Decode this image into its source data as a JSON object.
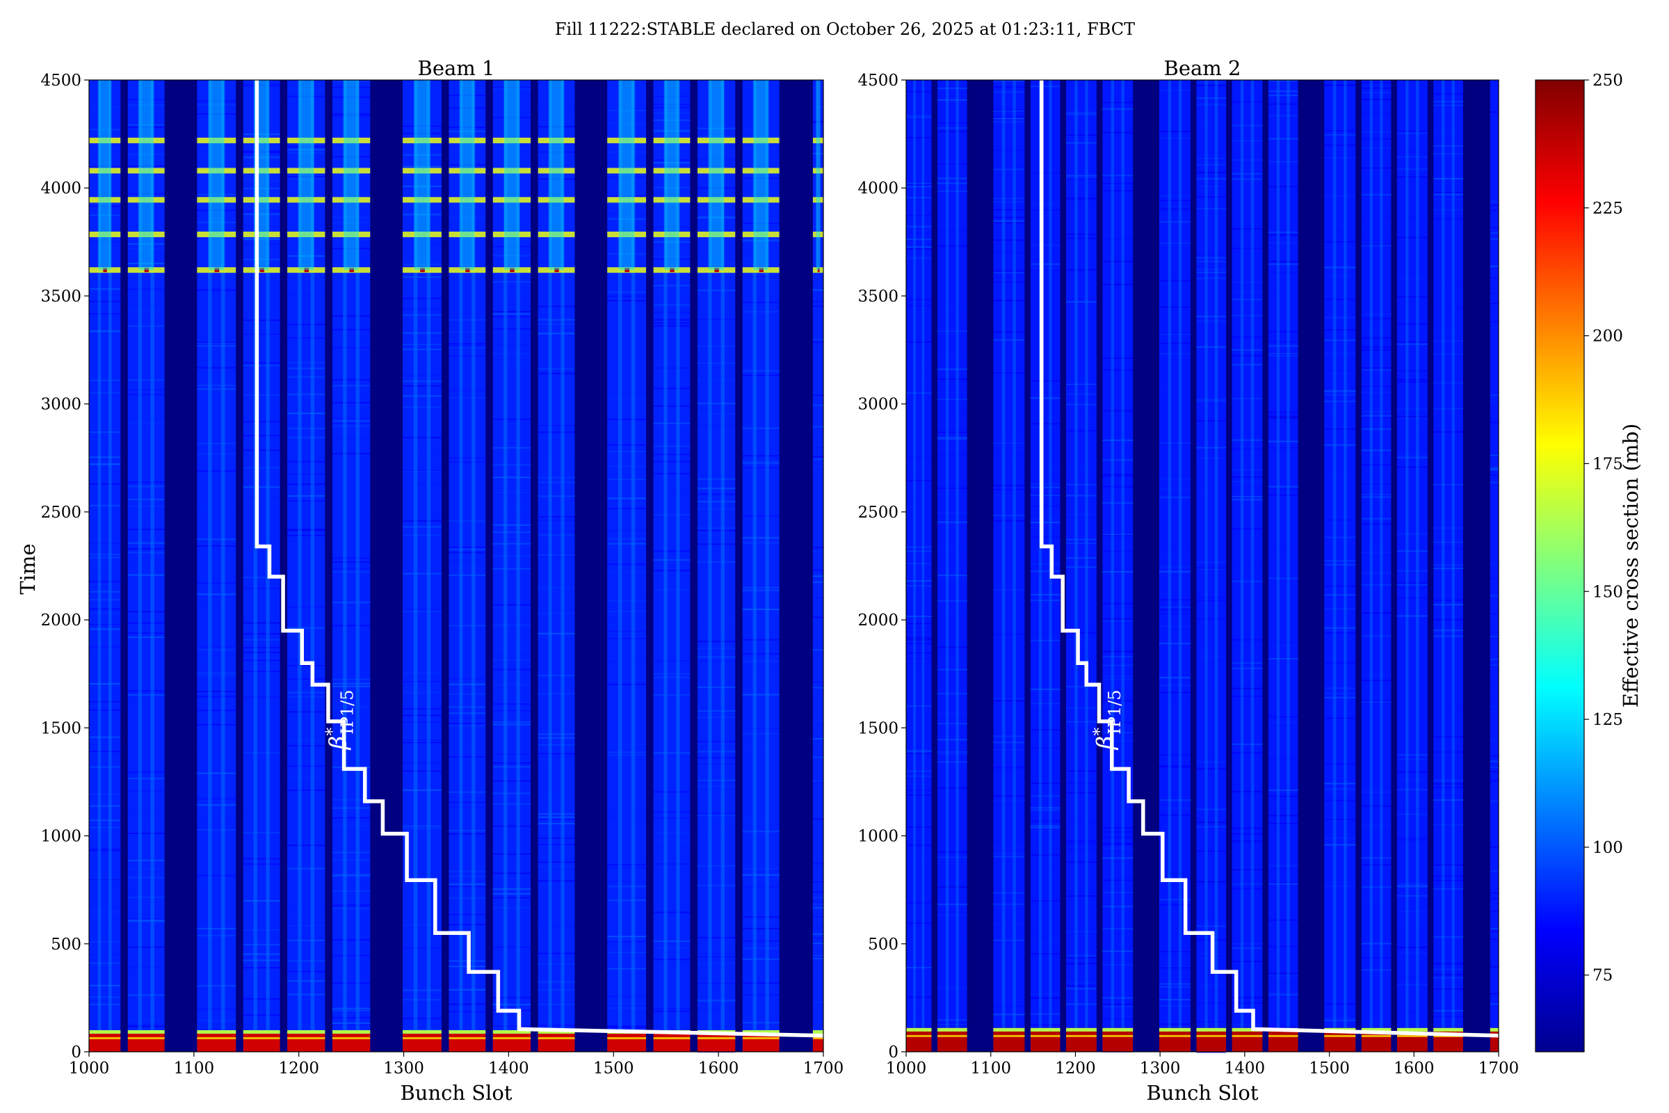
{
  "figure": {
    "title": "Fill 11222:STABLE declared on October 26, 2025 at 01:23:11, FBCT"
  },
  "colorbar": {
    "label": "Effective cross section (mb)",
    "range": [
      60,
      250
    ],
    "ticks": [
      75,
      100,
      125,
      150,
      175,
      200,
      225,
      250
    ],
    "colormap": "jet"
  },
  "chart_data": [
    {
      "type": "heatmap",
      "title": "Beam 1",
      "xlabel": "Bunch Slot",
      "ylabel": "Time",
      "xlim": [
        1000,
        1700
      ],
      "ylim": [
        0,
        4500
      ],
      "xticks": [
        1000,
        1100,
        1200,
        1300,
        1400,
        1500,
        1600,
        1700
      ],
      "yticks": [
        0,
        500,
        1000,
        1500,
        2000,
        2500,
        3000,
        3500,
        4000,
        4500
      ],
      "colorbar_range": [
        60,
        250
      ],
      "filled_bunch_trains": [
        [
          1000,
          1030
        ],
        [
          1037,
          1072
        ],
        [
          1103,
          1140
        ],
        [
          1147,
          1182
        ],
        [
          1189,
          1225
        ],
        [
          1232,
          1268
        ],
        [
          1299,
          1336
        ],
        [
          1343,
          1378
        ],
        [
          1385,
          1421
        ],
        [
          1428,
          1463
        ],
        [
          1494,
          1531
        ],
        [
          1538,
          1573
        ],
        [
          1580,
          1616
        ],
        [
          1623,
          1658
        ],
        [
          1690,
          1700
        ]
      ],
      "background_cross_section_mb": 90,
      "early_cross_section_mb": 235,
      "early_period_time": [
        0,
        100
      ],
      "bright_rows_time": [
        3620,
        3785,
        3945,
        4080,
        4220
      ],
      "bright_row_cross_section_mb": 175,
      "peak_cross_section_mb": 240,
      "annotation": {
        "label_main": "β",
        "label_sup": "*",
        "label_sub": "IP1/5"
      },
      "beta_star_curve": [
        [
          1160,
          4500
        ],
        [
          1160,
          2340
        ],
        [
          1172,
          2340
        ],
        [
          1172,
          2200
        ],
        [
          1185,
          2200
        ],
        [
          1185,
          1950
        ],
        [
          1203,
          1950
        ],
        [
          1203,
          1800
        ],
        [
          1213,
          1800
        ],
        [
          1213,
          1700
        ],
        [
          1228,
          1700
        ],
        [
          1228,
          1530
        ],
        [
          1243,
          1530
        ],
        [
          1243,
          1310
        ],
        [
          1263,
          1310
        ],
        [
          1263,
          1160
        ],
        [
          1280,
          1160
        ],
        [
          1280,
          1010
        ],
        [
          1303,
          1010
        ],
        [
          1303,
          795
        ],
        [
          1330,
          795
        ],
        [
          1330,
          550
        ],
        [
          1362,
          550
        ],
        [
          1362,
          370
        ],
        [
          1390,
          370
        ],
        [
          1390,
          190
        ],
        [
          1410,
          190
        ],
        [
          1410,
          105
        ],
        [
          1700,
          75
        ]
      ]
    },
    {
      "type": "heatmap",
      "title": "Beam 2",
      "xlabel": "Bunch Slot",
      "ylabel": "",
      "xlim": [
        1000,
        1700
      ],
      "ylim": [
        0,
        4500
      ],
      "xticks": [
        1000,
        1100,
        1200,
        1300,
        1400,
        1500,
        1600,
        1700
      ],
      "yticks": [
        0,
        500,
        1000,
        1500,
        2000,
        2500,
        3000,
        3500,
        4000,
        4500
      ],
      "colorbar_range": [
        60,
        250
      ],
      "filled_bunch_trains": [
        [
          1000,
          1030
        ],
        [
          1037,
          1072
        ],
        [
          1103,
          1140
        ],
        [
          1147,
          1182
        ],
        [
          1189,
          1225
        ],
        [
          1232,
          1268
        ],
        [
          1299,
          1336
        ],
        [
          1343,
          1378
        ],
        [
          1385,
          1421
        ],
        [
          1428,
          1463
        ],
        [
          1494,
          1531
        ],
        [
          1538,
          1573
        ],
        [
          1580,
          1616
        ],
        [
          1623,
          1658
        ],
        [
          1690,
          1700
        ]
      ],
      "background_cross_section_mb": 88,
      "early_cross_section_mb": 240,
      "early_period_time": [
        0,
        110
      ],
      "bright_rows_time": [],
      "bright_row_cross_section_mb": 88,
      "peak_cross_section_mb": 250,
      "annotation": {
        "label_main": "β",
        "label_sup": "*",
        "label_sub": "IP1/5"
      },
      "beta_star_curve": [
        [
          1160,
          4500
        ],
        [
          1160,
          2340
        ],
        [
          1172,
          2340
        ],
        [
          1172,
          2200
        ],
        [
          1185,
          2200
        ],
        [
          1185,
          1950
        ],
        [
          1203,
          1950
        ],
        [
          1203,
          1800
        ],
        [
          1213,
          1800
        ],
        [
          1213,
          1700
        ],
        [
          1228,
          1700
        ],
        [
          1228,
          1530
        ],
        [
          1243,
          1530
        ],
        [
          1243,
          1310
        ],
        [
          1263,
          1310
        ],
        [
          1263,
          1160
        ],
        [
          1280,
          1160
        ],
        [
          1280,
          1010
        ],
        [
          1303,
          1010
        ],
        [
          1303,
          795
        ],
        [
          1330,
          795
        ],
        [
          1330,
          550
        ],
        [
          1362,
          550
        ],
        [
          1362,
          370
        ],
        [
          1390,
          370
        ],
        [
          1390,
          190
        ],
        [
          1410,
          190
        ],
        [
          1410,
          105
        ],
        [
          1700,
          75
        ]
      ]
    }
  ]
}
